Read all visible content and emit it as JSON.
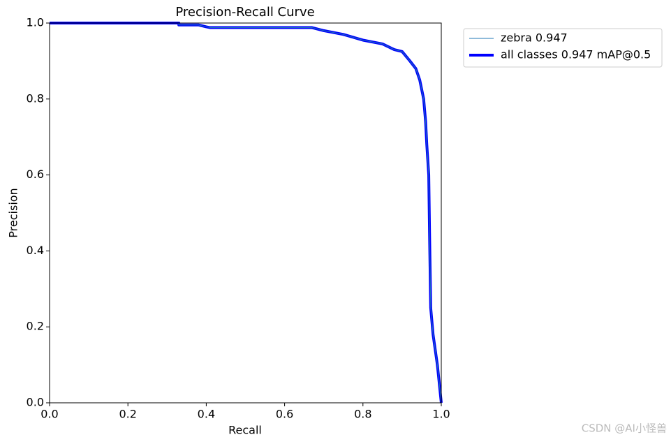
{
  "chart_data": {
    "type": "line",
    "title": "Precision-Recall Curve",
    "xlabel": "Recall",
    "ylabel": "Precision",
    "x": [
      0,
      0.33,
      0.33,
      0.38,
      0.4,
      0.41,
      0.67,
      0.7,
      0.75,
      0.8,
      0.85,
      0.88,
      0.9,
      0.92,
      0.935,
      0.945,
      0.955,
      0.96,
      0.963,
      0.968,
      0.97,
      0.973,
      0.979,
      0.99,
      1.0
    ],
    "series": [
      {
        "name": "zebra 0.947",
        "color": "#1f77b4",
        "width": 1,
        "values": [
          1,
          1,
          0.995,
          0.995,
          0.99,
          0.988,
          0.988,
          0.98,
          0.97,
          0.955,
          0.945,
          0.93,
          0.925,
          0.9,
          0.88,
          0.85,
          0.8,
          0.74,
          0.68,
          0.6,
          0.45,
          0.25,
          0.18,
          0.1,
          0
        ]
      },
      {
        "name": "all classes 0.947 mAP@0.5",
        "color": "#0000ff",
        "width": 4,
        "values": [
          1,
          1,
          0.995,
          0.995,
          0.99,
          0.988,
          0.988,
          0.98,
          0.97,
          0.955,
          0.945,
          0.93,
          0.925,
          0.9,
          0.88,
          0.85,
          0.8,
          0.74,
          0.68,
          0.6,
          0.45,
          0.25,
          0.18,
          0.1,
          0
        ]
      }
    ],
    "xlim": [
      0,
      1
    ],
    "ylim": [
      0,
      1
    ],
    "xticks": [
      {
        "value": 0,
        "label": "0.0"
      },
      0.2,
      0.4,
      0.6,
      0.8,
      {
        "value": 1,
        "label": "1.0"
      }
    ],
    "yticks": [
      {
        "value": 0,
        "label": "0.0"
      },
      0.2,
      0.4,
      0.6,
      0.8,
      {
        "value": 1,
        "label": "1.0"
      }
    ],
    "grid": false,
    "legend": "outside upper right",
    "watermark": "CSDN @AI小怪兽"
  }
}
